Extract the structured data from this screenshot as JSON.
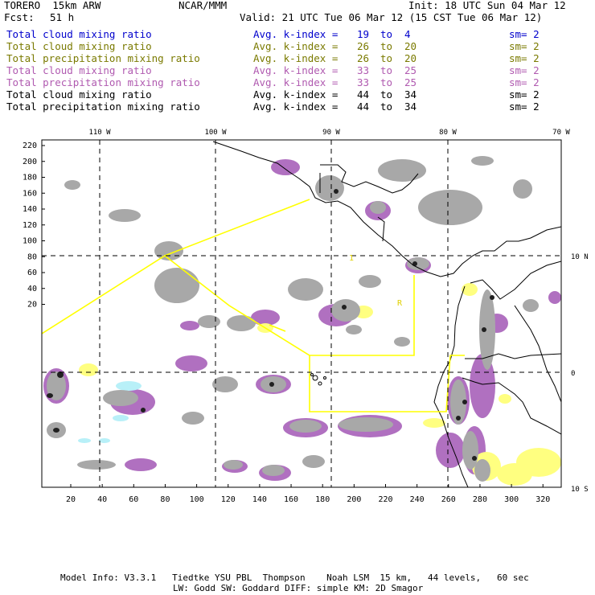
{
  "header": {
    "model": "TORERO  15km ARW",
    "org": "NCAR/MMM",
    "init": "Init: 18 UTC Sun 04 Mar 12",
    "fcst_label": "Fcst:",
    "fcst_value": "51 h",
    "valid": "Valid: 21 UTC Tue 06 Mar 12 (15 CST Tue 06 Mar 12)"
  },
  "legend": [
    {
      "field": "Total cloud mixing ratio",
      "kindex": "Avg. k-index =",
      "hi": "19",
      "to": "to",
      "lo": "4",
      "sm": "sm= 2",
      "color": "#0000cc"
    },
    {
      "field": "Total cloud mixing ratio",
      "kindex": "Avg. k-index =",
      "hi": "26",
      "to": "to",
      "lo": "20",
      "sm": "sm= 2",
      "color": "#7a7a00"
    },
    {
      "field": "Total precipitation mixing ratio",
      "kindex": "Avg. k-index =",
      "hi": "26",
      "to": "to",
      "lo": "20",
      "sm": "sm= 2",
      "color": "#7a7a00"
    },
    {
      "field": "Total cloud mixing ratio",
      "kindex": "Avg. k-index =",
      "hi": "33",
      "to": "to",
      "lo": "25",
      "sm": "sm= 2",
      "color": "#b05ab0"
    },
    {
      "field": "Total precipitation mixing ratio",
      "kindex": "Avg. k-index =",
      "hi": "33",
      "to": "to",
      "lo": "25",
      "sm": "sm= 2",
      "color": "#b05ab0"
    },
    {
      "field": "Total cloud mixing ratio",
      "kindex": "Avg. k-index =",
      "hi": "44",
      "to": "to",
      "lo": "34",
      "sm": "sm= 2",
      "color": "#000000"
    },
    {
      "field": "Total precipitation mixing ratio",
      "kindex": "Avg. k-index =",
      "hi": "44",
      "to": "to",
      "lo": "34",
      "sm": "sm= 2",
      "color": "#000000"
    }
  ],
  "map": {
    "lon_labels": [
      "110 W",
      "100 W",
      "90 W",
      "80 W",
      "70 W"
    ],
    "lat_labels": [
      "10 N",
      "0",
      "10 S"
    ],
    "y_ticks": [
      "220",
      "200",
      "180",
      "160",
      "140",
      "120",
      "100",
      "80",
      "60",
      "40",
      "20"
    ],
    "x_ticks": [
      "20",
      "40",
      "60",
      "80",
      "100",
      "120",
      "140",
      "160",
      "180",
      "200",
      "220",
      "240",
      "260",
      "280",
      "300",
      "320"
    ],
    "region_labels": [
      "1",
      "R"
    ],
    "colors": {
      "gray": "#a8a8a8",
      "purple": "#b070c0",
      "yellow": "#ffff80",
      "cyan": "#b8f0f8",
      "outline": "#ffff00"
    }
  },
  "footer": {
    "line1": "Model Info: V3.3.1   Tiedtke YSU PBL  Thompson    Noah LSM  15 km,   44 levels,   60 sec",
    "line2": "LW: Godd SW: Goddard DIFF: simple KM: 2D Smagor"
  }
}
